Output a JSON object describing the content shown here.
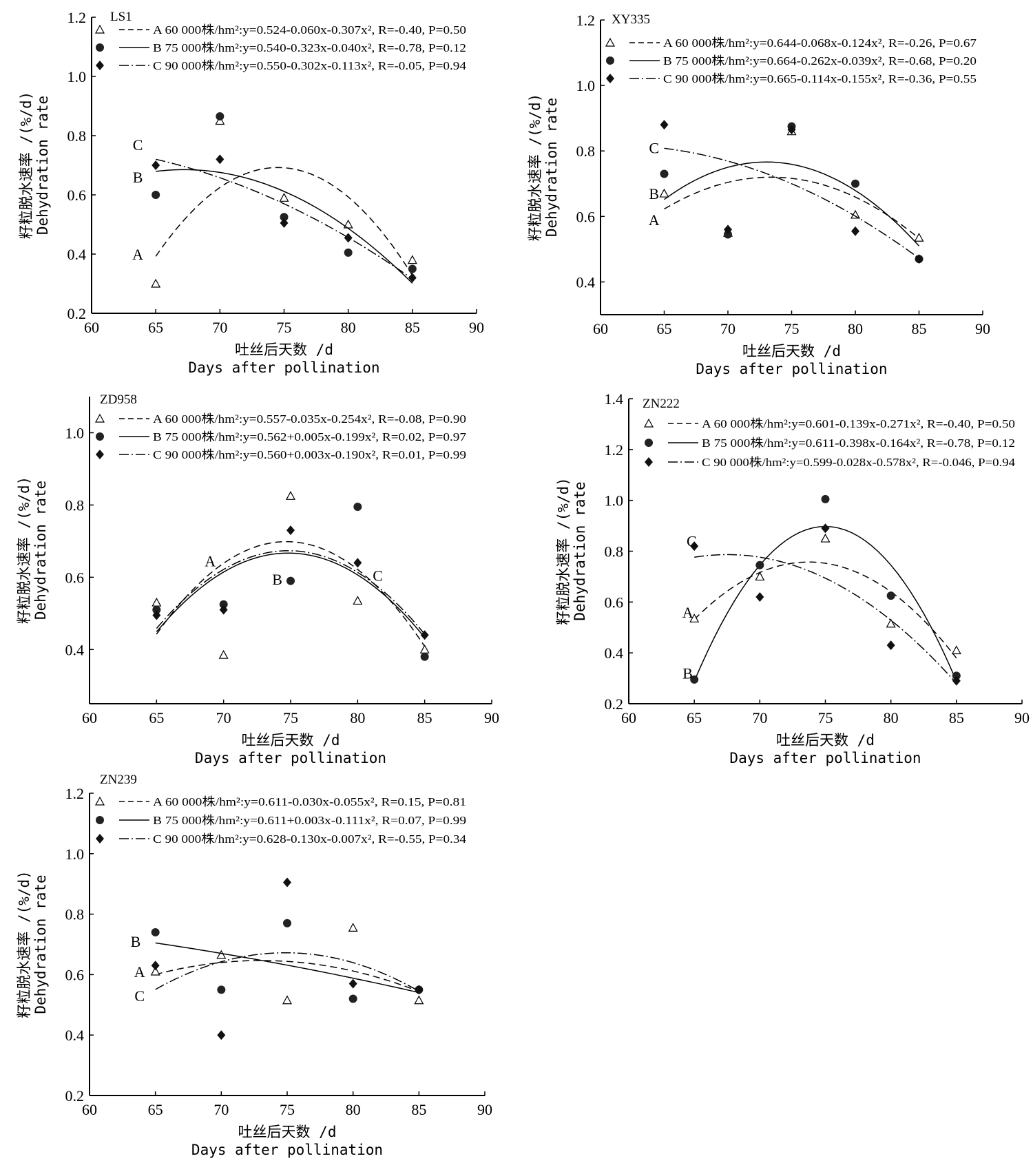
{
  "chart_data": [
    {
      "type": "scatter",
      "title": "LS1",
      "xlabel": [
        "吐丝后天数 /d",
        "Days after pollination"
      ],
      "ylabel": [
        "籽粒脱水速率 /(%/d)",
        "Dehydration rate"
      ],
      "xlim": [
        60,
        90
      ],
      "ylim": [
        0.2,
        1.2
      ],
      "xticks": [
        "60",
        "65",
        "70",
        "75",
        "80",
        "85",
        "90"
      ],
      "yticks": [
        "0.2",
        "0.4",
        "0.6",
        "0.8",
        "1.0",
        "1.2"
      ],
      "grid": false,
      "legend": "top",
      "x": [
        65,
        70,
        75,
        80,
        85
      ],
      "series": [
        {
          "name": "A",
          "marker": "triangle",
          "legend": "A 60 000株/hm²:y=0.524-0.060x-0.307x², R=-0.40, P=0.50",
          "values": [
            0.3,
            0.85,
            0.59,
            0.5,
            0.38
          ],
          "fit": [
            0.39,
            0.63,
            0.69,
            0.59,
            0.33
          ],
          "label_at": [
            63.6,
            0.4
          ]
        },
        {
          "name": "B",
          "marker": "circle",
          "legend": "B 75 000株/hm²:y=0.540-0.323x-0.040x², R=-0.78, P=0.12",
          "values": [
            0.6,
            0.865,
            0.525,
            0.405,
            0.35
          ],
          "fit": [
            0.68,
            0.675,
            0.61,
            0.49,
            0.3
          ],
          "label_at": [
            63.6,
            0.66
          ]
        },
        {
          "name": "C",
          "marker": "diamond",
          "legend": "C 90 000株/hm²:y=0.550-0.302x-0.113x², R=-0.05, P=0.94",
          "values": [
            0.7,
            0.72,
            0.505,
            0.455,
            0.32
          ],
          "fit": [
            0.725,
            0.65,
            0.565,
            0.47,
            0.31
          ],
          "label_at": [
            63.6,
            0.77
          ]
        }
      ]
    },
    {
      "type": "scatter",
      "title": "XY335",
      "xlabel": [
        "吐丝后天数 /d",
        "Days after pollination"
      ],
      "ylabel": [
        "籽粒脱水速率 /(%/d)",
        "Dehydration rate"
      ],
      "xlim": [
        60,
        90
      ],
      "ylim": [
        0.3,
        1.2
      ],
      "xticks": [
        "60",
        "65",
        "70",
        "75",
        "80",
        "85",
        "90"
      ],
      "yticks": [
        "0.4",
        "0.6",
        "0.8",
        "1.0",
        "1.2"
      ],
      "grid": false,
      "legend": "top",
      "x": [
        65,
        70,
        75,
        80,
        85
      ],
      "series": [
        {
          "name": "A",
          "marker": "triangle",
          "legend": "A 60 000株/hm²:y=0.644-0.068x-0.124x², R=-0.26, P=0.67",
          "values": [
            0.67,
            0.55,
            0.86,
            0.605,
            0.535
          ],
          "fit": [
            0.625,
            0.7,
            0.715,
            0.665,
            0.53
          ],
          "label_at": [
            64.2,
            0.59
          ]
        },
        {
          "name": "B",
          "marker": "circle",
          "legend": "B 75 000株/hm²:y=0.664-0.262x-0.039x², R=-0.68, P=0.20",
          "values": [
            0.73,
            0.545,
            0.875,
            0.7,
            0.47
          ],
          "fit": [
            0.655,
            0.745,
            0.755,
            0.69,
            0.505
          ],
          "label_at": [
            64.2,
            0.67
          ]
        },
        {
          "name": "C",
          "marker": "diamond",
          "legend": "C 90 000株/hm²:y=0.665-0.114x-0.155x², R=-0.36, P=0.55",
          "values": [
            0.88,
            0.56,
            0.865,
            0.555,
            0.47
          ],
          "fit": [
            0.81,
            0.765,
            0.7,
            0.605,
            0.47
          ],
          "label_at": [
            64.2,
            0.81
          ]
        }
      ]
    },
    {
      "type": "scatter",
      "title": "ZD958",
      "xlabel": [
        "吐丝后天数 /d",
        "Days after pollination"
      ],
      "ylabel": [
        "籽粒脱水速率 /(%/d)",
        "Dehydration rate"
      ],
      "xlim": [
        60,
        90
      ],
      "ylim": [
        0.25,
        1.1
      ],
      "xticks": [
        "60",
        "65",
        "70",
        "75",
        "80",
        "85",
        "90"
      ],
      "yticks": [
        "0.4",
        "0.6",
        "0.8",
        "1.0"
      ],
      "grid": false,
      "legend": "top",
      "x": [
        65,
        70,
        75,
        80,
        85
      ],
      "series": [
        {
          "name": "A",
          "marker": "triangle",
          "legend": "A 60 000株/hm²:y=0.557-0.035x-0.254x², R=-0.08, P=0.90",
          "values": [
            0.53,
            0.385,
            0.825,
            0.535,
            0.4
          ],
          "fit": [
            0.44,
            0.645,
            0.695,
            0.62,
            0.41
          ],
          "label_at": [
            69.0,
            0.645
          ]
        },
        {
          "name": "B",
          "marker": "circle",
          "legend": "B 75 000株/hm²:y=0.562+0.005x-0.199x², R=0.02, P=0.97",
          "values": [
            0.51,
            0.525,
            0.59,
            0.795,
            0.38
          ],
          "fit": [
            0.45,
            0.615,
            0.66,
            0.615,
            0.43
          ],
          "label_at": [
            74.0,
            0.595
          ]
        },
        {
          "name": "C",
          "marker": "diamond",
          "legend": "C 90 000株/hm²:y=0.560+0.003x-0.190x², R=0.01, P=0.99",
          "values": [
            0.495,
            0.51,
            0.73,
            0.64,
            0.44
          ],
          "fit": [
            0.46,
            0.62,
            0.67,
            0.62,
            0.44
          ],
          "label_at": [
            81.5,
            0.605
          ]
        }
      ]
    },
    {
      "type": "scatter",
      "title": "ZN222",
      "xlabel": [
        "吐丝后天数 /d",
        "Days after pollination"
      ],
      "ylabel": [
        "籽粒脱水速率 /(%/d)",
        "Dehydration rate"
      ],
      "xlim": [
        60,
        90
      ],
      "ylim": [
        0.2,
        1.4
      ],
      "xticks": [
        "60",
        "65",
        "70",
        "75",
        "80",
        "85",
        "90"
      ],
      "yticks": [
        "0.2",
        "0.4",
        "0.6",
        "0.8",
        "1.0",
        "1.2",
        "1.4"
      ],
      "grid": false,
      "legend": "top",
      "x": [
        65,
        70,
        75,
        80,
        85
      ],
      "series": [
        {
          "name": "A",
          "marker": "triangle",
          "legend": "A 60 000株/hm²:y=0.601-0.139x-0.271x², R=-0.40, P=0.50",
          "values": [
            0.535,
            0.7,
            0.85,
            0.515,
            0.41
          ],
          "fit": [
            0.54,
            0.7,
            0.75,
            0.66,
            0.37
          ],
          "label_at": [
            64.5,
            0.56
          ]
        },
        {
          "name": "B",
          "marker": "circle",
          "legend": "B 75 000株/hm²:y=0.611-0.398x-0.164x², R=-0.78, P=0.12",
          "values": [
            0.295,
            0.745,
            1.005,
            0.625,
            0.31
          ],
          "fit": [
            0.29,
            0.74,
            0.905,
            0.74,
            0.29
          ],
          "label_at": [
            64.5,
            0.32
          ]
        },
        {
          "name": "C",
          "marker": "diamond",
          "legend": "C 90 000株/hm²:y=0.599-0.028x-0.578x², R=-0.046, P=0.94",
          "values": [
            0.82,
            0.62,
            0.89,
            0.43,
            0.29
          ],
          "fit": [
            0.775,
            0.78,
            0.69,
            0.53,
            0.28
          ],
          "label_at": [
            64.8,
            0.84
          ]
        }
      ]
    },
    {
      "type": "scatter",
      "title": "ZN239",
      "xlabel": [
        "吐丝后天数 /d",
        "Days after pollination"
      ],
      "ylabel": [
        "籽粒脱水速率 /(%/d)",
        "Dehydration rate"
      ],
      "xlim": [
        60,
        90
      ],
      "ylim": [
        0.2,
        1.2
      ],
      "xticks": [
        "60",
        "65",
        "70",
        "75",
        "80",
        "85",
        "90"
      ],
      "yticks": [
        "0.2",
        "0.4",
        "0.6",
        "0.8",
        "1.0",
        "1.2"
      ],
      "grid": false,
      "legend": "top",
      "x": [
        65,
        70,
        75,
        80,
        85
      ],
      "series": [
        {
          "name": "A",
          "marker": "triangle",
          "legend": "A 60 000株/hm²:y=0.611-0.030x-0.055x², R=0.15, P=0.81",
          "values": [
            0.61,
            0.665,
            0.515,
            0.755,
            0.515
          ],
          "fit": [
            0.6,
            0.64,
            0.645,
            0.61,
            0.545
          ],
          "label_at": [
            63.8,
            0.61
          ]
        },
        {
          "name": "B",
          "marker": "circle",
          "legend": "B 75 000株/hm²:y=0.611+0.003x-0.111x², R=0.07, P=0.99",
          "values": [
            0.74,
            0.55,
            0.77,
            0.52,
            0.55
          ],
          "fit": [
            0.705,
            0.67,
            0.63,
            0.59,
            0.54
          ],
          "label_at": [
            63.5,
            0.71
          ]
        },
        {
          "name": "C",
          "marker": "diamond",
          "legend": "C 90 000株/hm²:y=0.628-0.130x-0.007x², R=-0.55, P=0.34",
          "values": [
            0.63,
            0.4,
            0.905,
            0.57,
            0.55
          ],
          "fit": [
            0.545,
            0.655,
            0.67,
            0.63,
            0.55
          ],
          "label_at": [
            63.8,
            0.53
          ]
        }
      ]
    }
  ]
}
